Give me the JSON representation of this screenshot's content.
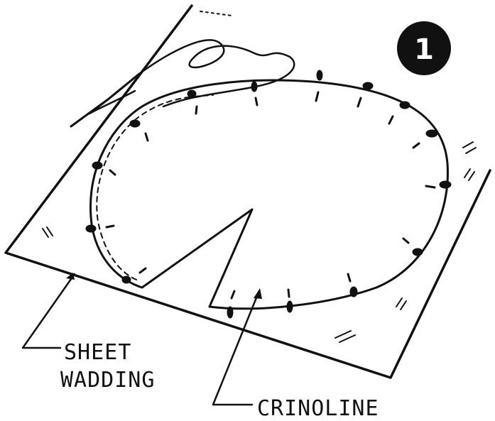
{
  "figure": {
    "step_number": "1",
    "labels": {
      "sheet_wadding": [
        "SHEET",
        "WADDING"
      ],
      "crinoline": "CRINOLINE"
    },
    "colors": {
      "ink": "#111111",
      "paper": "#ffffff"
    }
  }
}
